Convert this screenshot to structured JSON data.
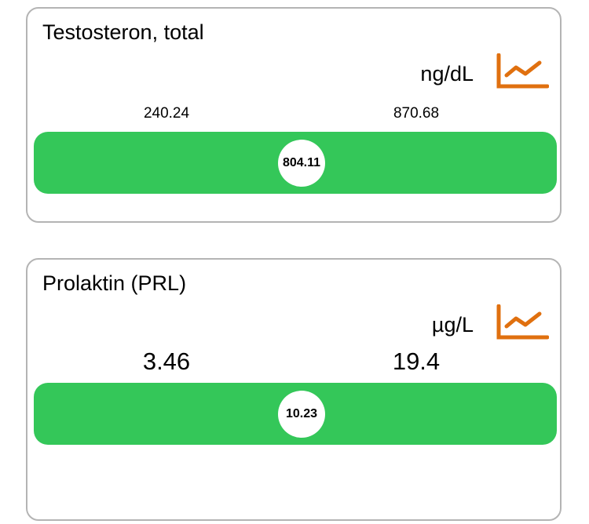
{
  "cards": [
    {
      "title": "Testosteron, total",
      "unit": "ng/dL",
      "min": 240.24,
      "max": 870.68,
      "value": 804.11
    },
    {
      "title": "Prolaktin (PRL)",
      "unit": "µg/L",
      "min": 3.46,
      "max": 19.4,
      "value": 10.23
    }
  ]
}
